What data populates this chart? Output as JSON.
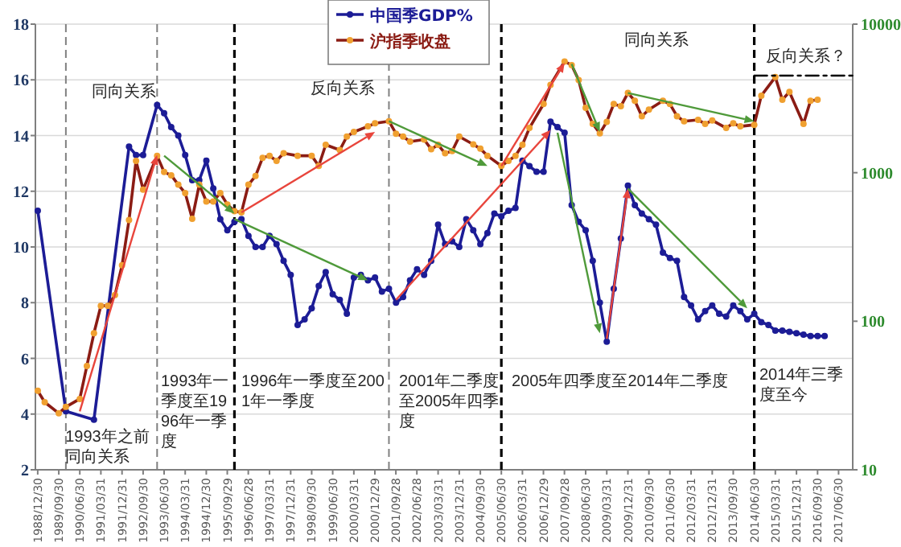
{
  "chart_data": {
    "type": "line",
    "xlim": [
      "1988-11",
      "2017-12"
    ],
    "xticks": [
      {
        "value": "1988-12-30",
        "label": "1988/12/30"
      },
      {
        "value": "1989-09-30",
        "label": "1989/09/30"
      },
      {
        "value": "1990-06-30",
        "label": "1990/06/30"
      },
      {
        "value": "1991-03-31",
        "label": "1991/03/31"
      },
      {
        "value": "1991-12-31",
        "label": "1991/12/31"
      },
      {
        "value": "1992-09-30",
        "label": "1992/09/30"
      },
      {
        "value": "1993-06-30",
        "label": "1993/06/30"
      },
      {
        "value": "1994-03-31",
        "label": "1994/03/31"
      },
      {
        "value": "1994-12-30",
        "label": "1994/12/30"
      },
      {
        "value": "1995-09-29",
        "label": "1995/09/29"
      },
      {
        "value": "1996-06-28",
        "label": "1996/06/28"
      },
      {
        "value": "1997-03-31",
        "label": "1997/03/31"
      },
      {
        "value": "1997-12-31",
        "label": "1997/12/31"
      },
      {
        "value": "1998-09-30",
        "label": "1998/09/30"
      },
      {
        "value": "1999-06-30",
        "label": "1999/06/30"
      },
      {
        "value": "2000-03-31",
        "label": "2000/03/31"
      },
      {
        "value": "2000-12-29",
        "label": "2000/12/29"
      },
      {
        "value": "2001-09-28",
        "label": "2001/09/28"
      },
      {
        "value": "2002-06-28",
        "label": "2002/06/28"
      },
      {
        "value": "2003-03-31",
        "label": "2003/03/31"
      },
      {
        "value": "2003-12-31",
        "label": "2003/12/31"
      },
      {
        "value": "2004-09-30",
        "label": "2004/09/30"
      },
      {
        "value": "2005-06-30",
        "label": "2005/06/30"
      },
      {
        "value": "2006-03-31",
        "label": "2006/03/31"
      },
      {
        "value": "2006-12-29",
        "label": "2006/12/29"
      },
      {
        "value": "2007-09-28",
        "label": "2007/09/28"
      },
      {
        "value": "2008-06-30",
        "label": "2008/06/30"
      },
      {
        "value": "2009-03-31",
        "label": "2009/03/31"
      },
      {
        "value": "2009-12-31",
        "label": "2009/12/31"
      },
      {
        "value": "2010-09-30",
        "label": "2010/09/30"
      },
      {
        "value": "2011-06-30",
        "label": "2011/06/30"
      },
      {
        "value": "2012-03-31",
        "label": "2012/03/31"
      },
      {
        "value": "2012-12-31",
        "label": "2012/12/31"
      },
      {
        "value": "2013-09-30",
        "label": "2013/09/30"
      },
      {
        "value": "2014-06-30",
        "label": "2014/06/30"
      },
      {
        "value": "2015-03-31",
        "label": "2015/03/31"
      },
      {
        "value": "2015-12-31",
        "label": "2015/12/31"
      },
      {
        "value": "2016-09-30",
        "label": "2016/09/30"
      },
      {
        "value": "2017-06-30",
        "label": "2017/06/30"
      }
    ],
    "ylim": [
      2,
      18
    ],
    "yticks": [
      2,
      4,
      6,
      8,
      10,
      12,
      14,
      16,
      18
    ],
    "y2lim": [
      10,
      10000
    ],
    "y2ticks": [
      10,
      100,
      1000,
      10000
    ],
    "log": "y2",
    "grid": "y",
    "legend": "top",
    "series": [
      {
        "name": "中国季GDP%",
        "color": "#1c1c96",
        "marker": "circle",
        "x": [
          "1988-12",
          "1989-12",
          "1990-12",
          "1992-03",
          "1992-06",
          "1992-09",
          "1993-03",
          "1993-06",
          "1993-09",
          "1993-12",
          "1994-03",
          "1994-06",
          "1994-09",
          "1994-12",
          "1995-03",
          "1995-06",
          "1995-09",
          "1995-12",
          "1996-03",
          "1996-06",
          "1996-09",
          "1996-12",
          "1997-03",
          "1997-06",
          "1997-09",
          "1997-12",
          "1998-03",
          "1998-06",
          "1998-09",
          "1998-12",
          "1999-03",
          "1999-06",
          "1999-09",
          "1999-12",
          "2000-03",
          "2000-06",
          "2000-09",
          "2000-12",
          "2001-03",
          "2001-06",
          "2001-09",
          "2001-12",
          "2002-03",
          "2002-06",
          "2002-09",
          "2002-12",
          "2003-03",
          "2003-06",
          "2003-09",
          "2003-12",
          "2004-03",
          "2004-06",
          "2004-09",
          "2004-12",
          "2005-03",
          "2005-06",
          "2005-09",
          "2005-12",
          "2006-03",
          "2006-06",
          "2006-09",
          "2006-12",
          "2007-03",
          "2007-06",
          "2007-09",
          "2007-12",
          "2008-03",
          "2008-06",
          "2008-09",
          "2008-12",
          "2009-03",
          "2009-06",
          "2009-09",
          "2009-12",
          "2010-03",
          "2010-06",
          "2010-09",
          "2010-12",
          "2011-03",
          "2011-06",
          "2011-09",
          "2011-12",
          "2012-03",
          "2012-06",
          "2012-09",
          "2012-12",
          "2013-03",
          "2013-06",
          "2013-09",
          "2013-12",
          "2014-03",
          "2014-06",
          "2014-09",
          "2014-12",
          "2015-03",
          "2015-06",
          "2015-09",
          "2015-12",
          "2016-03",
          "2016-06",
          "2016-09",
          "2016-12"
        ],
        "values": [
          11.3,
          4.1,
          3.8,
          13.6,
          13.3,
          13.3,
          15.1,
          14.8,
          14.3,
          14.0,
          13.3,
          12.4,
          12.4,
          13.1,
          12.1,
          11.0,
          10.6,
          10.9,
          11.0,
          10.4,
          10.0,
          10.0,
          10.4,
          10.1,
          9.5,
          9.0,
          7.2,
          7.4,
          7.8,
          8.6,
          9.1,
          8.3,
          8.1,
          7.6,
          8.9,
          9.0,
          8.8,
          8.9,
          8.4,
          8.5,
          8.0,
          8.2,
          8.8,
          9.2,
          9.0,
          9.5,
          10.8,
          10.1,
          10.2,
          10.0,
          11.0,
          10.6,
          10.1,
          10.5,
          11.2,
          11.1,
          11.3,
          11.4,
          13.1,
          12.9,
          12.7,
          12.7,
          14.5,
          14.3,
          14.1,
          11.5,
          10.9,
          10.6,
          9.5,
          8.0,
          6.6,
          8.5,
          10.3,
          12.2,
          11.5,
          11.2,
          11.0,
          10.8,
          9.8,
          9.6,
          9.5,
          8.2,
          7.9,
          7.4,
          7.7,
          7.9,
          7.6,
          7.5,
          7.9,
          7.7,
          7.4,
          7.6,
          7.3,
          7.2,
          7.0,
          7.0,
          6.95,
          6.9,
          6.85,
          6.8,
          6.8,
          6.8
        ]
      },
      {
        "name": "沪指季收盘",
        "color": "#8b1c14",
        "marker": "circle",
        "axis": "y2",
        "x": [
          "1988-12",
          "1989-03",
          "1989-09",
          "1989-12",
          "1990-06",
          "1990-09",
          "1990-12",
          "1991-03",
          "1991-06",
          "1991-09",
          "1991-12",
          "1992-03",
          "1992-06",
          "1992-09",
          "1993-03",
          "1993-06",
          "1993-09",
          "1993-12",
          "1994-03",
          "1994-06",
          "1994-09",
          "1994-12",
          "1995-03",
          "1995-06",
          "1995-09",
          "1995-12",
          "1996-03",
          "1996-06",
          "1996-09",
          "1996-12",
          "1997-03",
          "1997-06",
          "1997-09",
          "1998-03",
          "1998-09",
          "1998-12",
          "1999-03",
          "1999-09",
          "1999-12",
          "2000-03",
          "2000-09",
          "2000-12",
          "2001-06",
          "2001-09",
          "2001-12",
          "2002-03",
          "2002-09",
          "2002-12",
          "2003-03",
          "2003-06",
          "2003-09",
          "2003-12",
          "2004-06",
          "2004-09",
          "2004-12",
          "2005-06",
          "2005-09",
          "2005-12",
          "2006-03",
          "2006-06",
          "2006-12",
          "2007-03",
          "2007-09",
          "2007-12",
          "2008-03",
          "2008-06",
          "2008-09",
          "2008-12",
          "2009-03",
          "2009-06",
          "2009-09",
          "2009-12",
          "2010-03",
          "2010-06",
          "2010-09",
          "2011-03",
          "2011-06",
          "2011-09",
          "2011-12",
          "2012-06",
          "2012-09",
          "2012-12",
          "2013-06",
          "2013-09",
          "2013-12",
          "2014-06",
          "2014-09",
          "2015-03",
          "2015-06",
          "2015-09",
          "2016-03",
          "2016-06",
          "2016-09"
        ],
        "values": [
          34,
          28.5,
          24,
          26.5,
          30,
          50,
          83,
          127,
          127,
          150,
          238,
          480,
          1200,
          770,
          1300,
          1010,
          960,
          830,
          730,
          490,
          830,
          640,
          640,
          730,
          610,
          550,
          540,
          830,
          950,
          1260,
          1300,
          1200,
          1350,
          1300,
          1300,
          1110,
          1540,
          1420,
          1750,
          1880,
          2050,
          2150,
          2220,
          1830,
          1750,
          1620,
          1670,
          1440,
          1540,
          1350,
          1400,
          1750,
          1550,
          1450,
          1300,
          1110,
          1200,
          1300,
          1540,
          2000,
          2900,
          3900,
          5600,
          5300,
          4200,
          2730,
          2130,
          1840,
          2200,
          2900,
          2800,
          3440,
          3050,
          2400,
          2660,
          3050,
          2900,
          2400,
          2220,
          2270,
          2130,
          2250,
          2000,
          2150,
          2050,
          2100,
          3300,
          4400,
          3100,
          3500,
          2130,
          3050,
          3100
        ]
      },
      {
        "type": "line",
        "color": "#000000",
        "axis": "y2",
        "line_style": "dashed",
        "x": [
          "2014-06",
          "2017-12"
        ],
        "values": [
          4500,
          4500
        ]
      }
    ],
    "ref_lines": [
      {
        "axis": "x",
        "value": "1989-12",
        "color": "#808080",
        "line_style": "dashed"
      },
      {
        "axis": "x",
        "value": "1993-03",
        "color": "#808080",
        "line_style": "dashed"
      },
      {
        "axis": "x",
        "value": "1995-12",
        "color": "#000000",
        "line_style": "dashed"
      },
      {
        "axis": "x",
        "value": "2001-06",
        "color": "#808080",
        "line_style": "dashed"
      },
      {
        "axis": "x",
        "value": "2005-06",
        "color": "#000000",
        "line_style": "dashed"
      },
      {
        "axis": "x",
        "value": "2014-06",
        "color": "#000000",
        "line_style": "dashed"
      }
    ],
    "annotations": [
      "同向关系",
      "反向关系",
      "同向关系",
      "反向关系？",
      {
        "text": "1993年之前同向关系",
        "x": "1990-06",
        "y": 4.1
      },
      "1993年一季度至1996年一季度",
      "1996年一季度至2001年一季度",
      "2001年二季度至2005年四季度",
      "2005年四季度至2014年二季度",
      "2014年三季度至今"
    ]
  }
}
